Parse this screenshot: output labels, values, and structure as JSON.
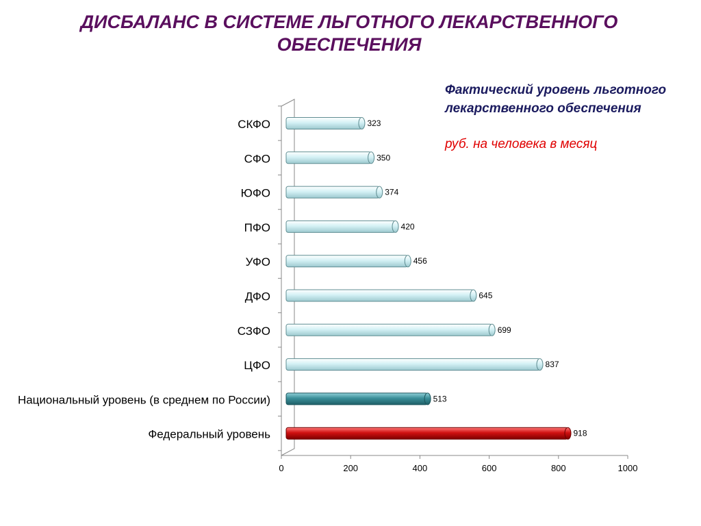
{
  "title": "ДИСБАЛАНС В СИСТЕМЕ ЛЬГОТНОГО ЛЕКАРСТВЕННОГО ОБЕСПЕЧЕНИЯ",
  "subtitle": "Фактический уровень льготного лекарственного обеспечения",
  "unit_label": "руб. на человека в месяц",
  "colors": {
    "title": "#5a0f5e",
    "subtitle": "#1a1a5e",
    "unit": "#e00000",
    "bar_regional": "#cdeef2",
    "bar_national": "#3a8e98",
    "bar_federal": "#d01010"
  },
  "chart_data": {
    "type": "bar",
    "orientation": "horizontal",
    "categories": [
      "СКФО",
      "СФО",
      "ЮФО",
      "ПФО",
      "УФО",
      "ДФО",
      "СЗФО",
      "ЦФО",
      "Национальный уровень (в среднем по России)",
      "Федеральный уровень"
    ],
    "values": [
      323,
      350,
      374,
      420,
      456,
      645,
      699,
      837,
      513,
      918
    ],
    "bar_styles": [
      "regional",
      "regional",
      "regional",
      "regional",
      "regional",
      "regional",
      "regional",
      "regional",
      "national",
      "federal"
    ],
    "xlim": [
      0,
      1000
    ],
    "x_ticks": [
      0,
      200,
      400,
      600,
      800,
      1000
    ],
    "grid": false,
    "legend": "none"
  }
}
